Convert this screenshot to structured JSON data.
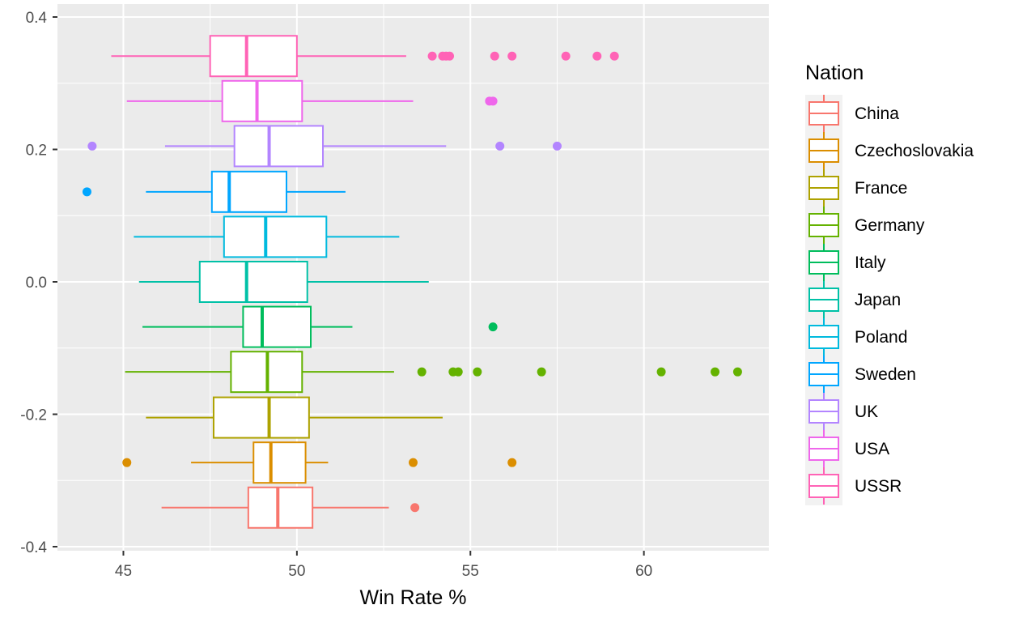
{
  "chart_data": {
    "type": "boxplot",
    "orientation": "horizontal",
    "xlabel": "Win Rate %",
    "ylabel": "",
    "xlim": [
      43.1,
      63.6
    ],
    "ylim": [
      -0.4,
      0.4
    ],
    "x_ticks": [
      45,
      50,
      55,
      60
    ],
    "x_tick_labels": [
      "45",
      "50",
      "55",
      "60"
    ],
    "y_ticks": [
      -0.4,
      -0.2,
      0.0,
      0.2,
      0.4
    ],
    "y_tick_labels": [
      "-0.4",
      "-0.2",
      "0.0",
      "0.2",
      "0.4"
    ],
    "grid": true,
    "legend_title": "Nation",
    "legend_position": "right",
    "series": [
      {
        "name": "China",
        "color": "#F8766D",
        "y": -0.341,
        "whisker_low": 46.1,
        "q1": 48.6,
        "median": 49.45,
        "q3": 50.45,
        "whisker_high": 52.65,
        "outliers": [
          53.4
        ]
      },
      {
        "name": "Czechoslovakia",
        "color": "#DB8E00",
        "y": -0.273,
        "whisker_low": 46.95,
        "q1": 48.75,
        "median": 49.25,
        "q3": 50.25,
        "whisker_high": 50.9,
        "outliers": [
          45.1,
          53.35,
          56.2
        ]
      },
      {
        "name": "France",
        "color": "#AEA200",
        "y": -0.205,
        "whisker_low": 45.65,
        "q1": 47.6,
        "median": 49.2,
        "q3": 50.35,
        "whisker_high": 54.2,
        "outliers": []
      },
      {
        "name": "Germany",
        "color": "#64B200",
        "y": -0.136,
        "whisker_low": 45.05,
        "q1": 48.1,
        "median": 49.15,
        "q3": 50.15,
        "whisker_high": 52.8,
        "outliers": [
          53.6,
          54.5,
          54.65,
          55.2,
          57.05,
          60.5,
          62.05,
          62.7
        ]
      },
      {
        "name": "Italy",
        "color": "#00BD5C",
        "y": -0.068,
        "whisker_low": 45.55,
        "q1": 48.45,
        "median": 49.0,
        "q3": 50.4,
        "whisker_high": 51.6,
        "outliers": [
          55.65
        ]
      },
      {
        "name": "Japan",
        "color": "#00C1A7",
        "y": 0.0,
        "whisker_low": 45.45,
        "q1": 47.2,
        "median": 48.55,
        "q3": 50.3,
        "whisker_high": 53.8,
        "outliers": []
      },
      {
        "name": "Poland",
        "color": "#00BADE",
        "y": 0.068,
        "whisker_low": 45.3,
        "q1": 47.9,
        "median": 49.1,
        "q3": 50.85,
        "whisker_high": 52.95,
        "outliers": []
      },
      {
        "name": "Sweden",
        "color": "#00A6FF",
        "y": 0.136,
        "whisker_low": 45.65,
        "q1": 47.55,
        "median": 48.05,
        "q3": 49.7,
        "whisker_high": 51.4,
        "outliers": [
          43.95
        ]
      },
      {
        "name": "UK",
        "color": "#B385FF",
        "y": 0.205,
        "whisker_low": 46.2,
        "q1": 48.2,
        "median": 49.2,
        "q3": 50.75,
        "whisker_high": 54.3,
        "outliers": [
          44.1,
          55.85,
          57.5
        ]
      },
      {
        "name": "USA",
        "color": "#EF67EB",
        "y": 0.273,
        "whisker_low": 45.1,
        "q1": 47.85,
        "median": 48.85,
        "q3": 50.15,
        "whisker_high": 53.35,
        "outliers": [
          55.55,
          55.65
        ]
      },
      {
        "name": "USSR",
        "color": "#FF63B6",
        "y": 0.341,
        "whisker_low": 44.65,
        "q1": 47.5,
        "median": 48.55,
        "q3": 50.0,
        "whisker_high": 53.15,
        "outliers": [
          53.9,
          54.2,
          54.3,
          54.4,
          55.7,
          56.2,
          57.75,
          58.65,
          59.15
        ]
      }
    ]
  }
}
